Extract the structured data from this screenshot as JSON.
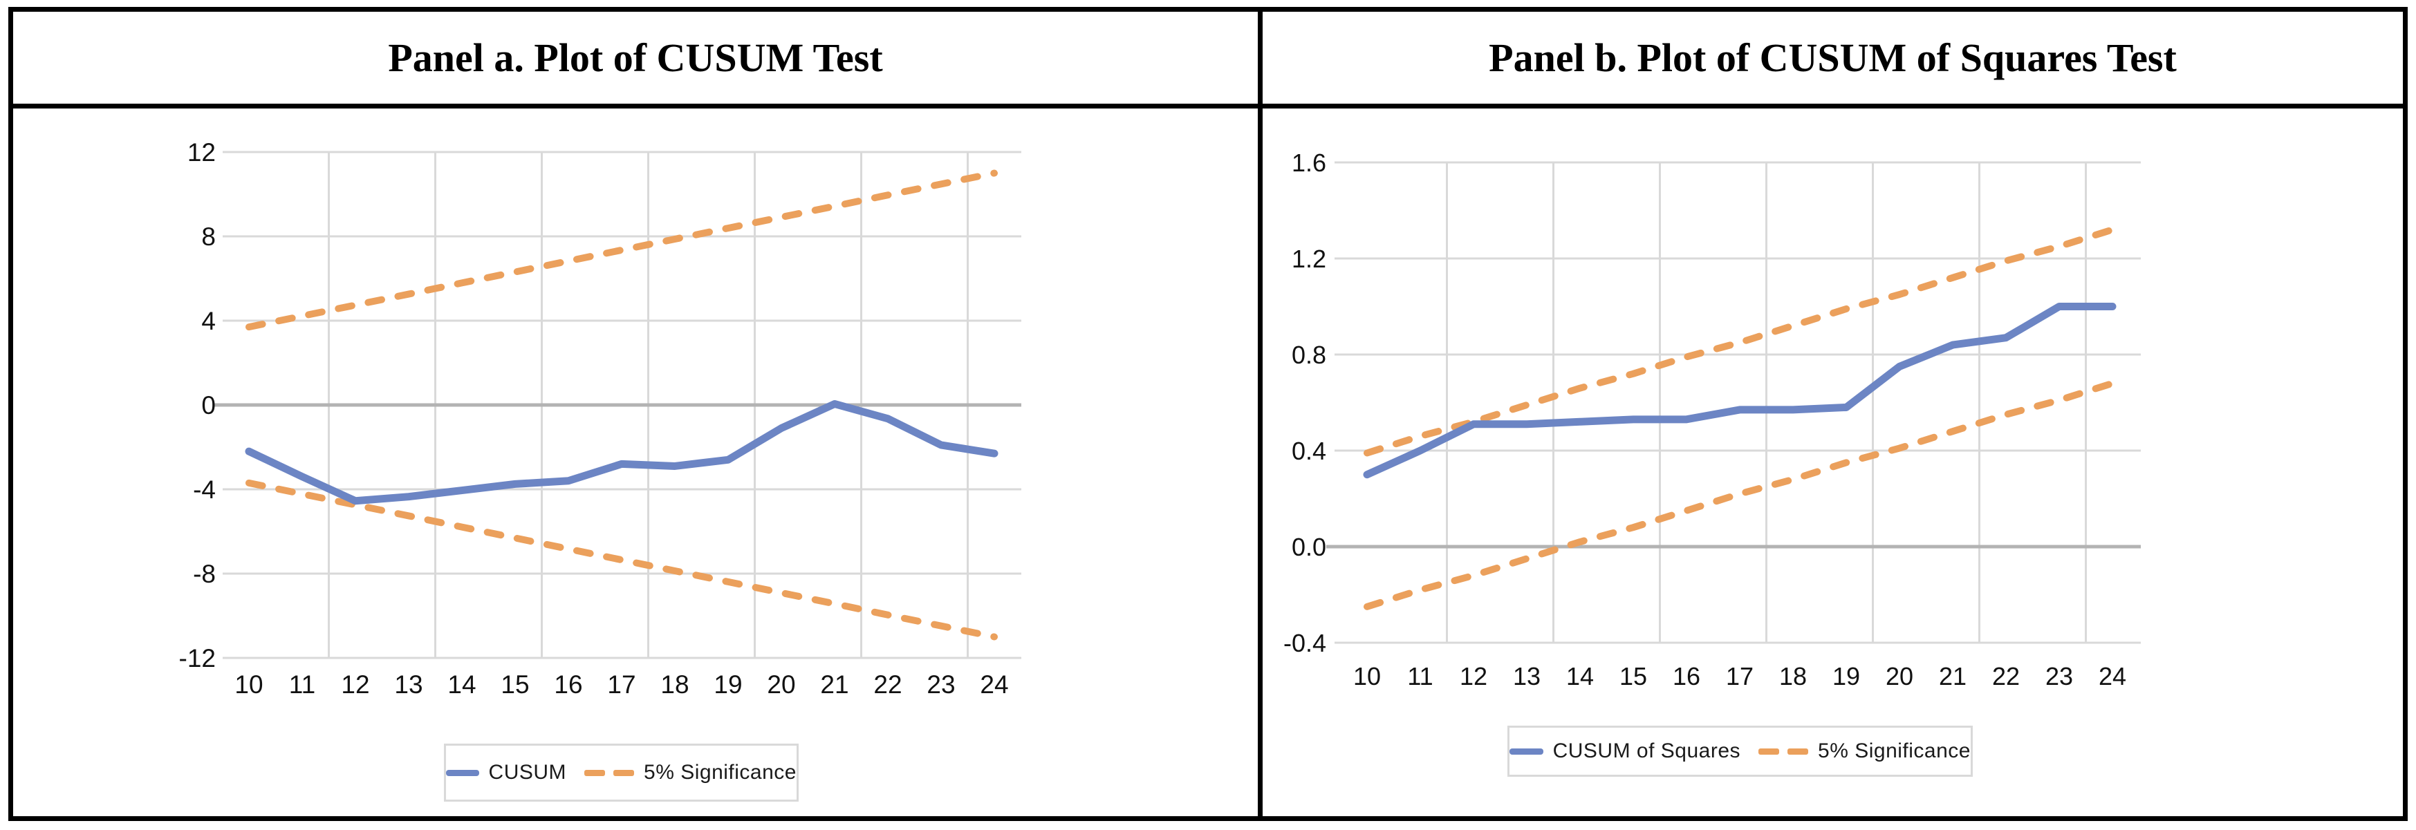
{
  "accent_colors": {
    "series_blue": "#6C85C4",
    "series_orange": "#EBA05C",
    "gridline_gray": "#D9D9D9",
    "zero_line_gray": "#B3B3B3",
    "frame_black": "#000000"
  },
  "panels": [
    {
      "title": "Panel a. Plot of CUSUM Test",
      "legend": [
        {
          "label": "CUSUM",
          "style": "solid",
          "color": "#6C85C4"
        },
        {
          "label": "5% Significance",
          "style": "dashed",
          "color": "#EBA05C"
        }
      ]
    },
    {
      "title": "Panel b. Plot of CUSUM of Squares Test",
      "legend": [
        {
          "label": "CUSUM of Squares",
          "style": "solid",
          "color": "#6C85C4"
        },
        {
          "label": "5% Significance",
          "style": "dashed",
          "color": "#EBA05C"
        }
      ]
    }
  ],
  "chart_data": [
    {
      "type": "line",
      "title": "Panel a. Plot of CUSUM Test",
      "xlabel": "",
      "ylabel": "",
      "x": [
        10,
        11,
        12,
        13,
        14,
        15,
        16,
        17,
        18,
        19,
        20,
        21,
        22,
        23,
        24
      ],
      "x_tick_labels": [
        "10",
        "11",
        "12",
        "13",
        "14",
        "15",
        "16",
        "17",
        "18",
        "19",
        "20",
        "21",
        "22",
        "23",
        "24"
      ],
      "ylim": [
        -12,
        12
      ],
      "yticks": [
        {
          "v": 12,
          "label": "12"
        },
        {
          "v": 8,
          "label": "8"
        },
        {
          "v": 4,
          "label": "4"
        },
        {
          "v": 0,
          "label": "0"
        },
        {
          "v": -4,
          "label": "-4"
        },
        {
          "v": -8,
          "label": "-8"
        },
        {
          "v": -12,
          "label": "-12"
        }
      ],
      "grid_x": [
        11.5,
        13.5,
        15.5,
        17.5,
        19.5,
        21.5,
        23.5
      ],
      "grid": true,
      "legend_position": "bottom",
      "series": [
        {
          "name": "CUSUM",
          "style": "solid",
          "color": "#6C85C4",
          "values": [
            -2.2,
            -3.4,
            -4.55,
            -4.35,
            -4.05,
            -3.75,
            -3.6,
            -2.8,
            -2.9,
            -2.6,
            -1.1,
            0.05,
            -0.65,
            -1.9,
            -2.3
          ]
        },
        {
          "name": "5% Significance (upper)",
          "style": "dashed",
          "color": "#EBA05C",
          "values": [
            3.7,
            4.22,
            4.74,
            5.26,
            5.79,
            6.31,
            6.83,
            7.35,
            7.87,
            8.39,
            8.91,
            9.43,
            9.96,
            10.48,
            11.0
          ]
        },
        {
          "name": "5% Significance (lower)",
          "style": "dashed",
          "color": "#EBA05C",
          "values": [
            -3.7,
            -4.22,
            -4.74,
            -5.26,
            -5.79,
            -6.31,
            -6.83,
            -7.35,
            -7.87,
            -8.39,
            -8.91,
            -9.43,
            -9.96,
            -10.48,
            -11.0
          ]
        }
      ]
    },
    {
      "type": "line",
      "title": "Panel b. Plot of CUSUM of Squares Test",
      "xlabel": "",
      "ylabel": "",
      "x": [
        10,
        11,
        12,
        13,
        14,
        15,
        16,
        17,
        18,
        19,
        20,
        21,
        22,
        23,
        24
      ],
      "x_tick_labels": [
        "10",
        "11",
        "12",
        "13",
        "14",
        "15",
        "16",
        "17",
        "18",
        "19",
        "20",
        "21",
        "22",
        "23",
        "24"
      ],
      "ylim": [
        -0.4,
        1.6
      ],
      "yticks": [
        {
          "v": 1.6,
          "label": "1.6"
        },
        {
          "v": 1.2,
          "label": "1.2"
        },
        {
          "v": 0.8,
          "label": "0.8"
        },
        {
          "v": 0.4,
          "label": "0.4"
        },
        {
          "v": 0,
          "label": "0.0"
        },
        {
          "v": -0.4,
          "label": "-0.4"
        }
      ],
      "grid_x": [
        11.5,
        13.5,
        15.5,
        17.5,
        19.5,
        21.5,
        23.5
      ],
      "grid": true,
      "legend_position": "bottom",
      "series": [
        {
          "name": "CUSUM of Squares",
          "style": "solid",
          "color": "#6C85C4",
          "values": [
            0.3,
            0.4,
            0.51,
            0.51,
            0.52,
            0.53,
            0.53,
            0.57,
            0.57,
            0.58,
            0.75,
            0.84,
            0.87,
            1.0,
            1.0
          ]
        },
        {
          "name": "5% Significance (upper)",
          "style": "dashed",
          "color": "#EBA05C",
          "values": [
            0.39,
            0.46,
            0.52,
            0.59,
            0.66,
            0.72,
            0.79,
            0.85,
            0.92,
            0.99,
            1.05,
            1.12,
            1.19,
            1.25,
            1.32
          ]
        },
        {
          "name": "5% Significance (lower)",
          "style": "dashed",
          "color": "#EBA05C",
          "values": [
            -0.25,
            -0.18,
            -0.12,
            -0.05,
            0.02,
            0.08,
            0.15,
            0.22,
            0.28,
            0.35,
            0.41,
            0.48,
            0.55,
            0.61,
            0.68
          ]
        }
      ]
    }
  ]
}
